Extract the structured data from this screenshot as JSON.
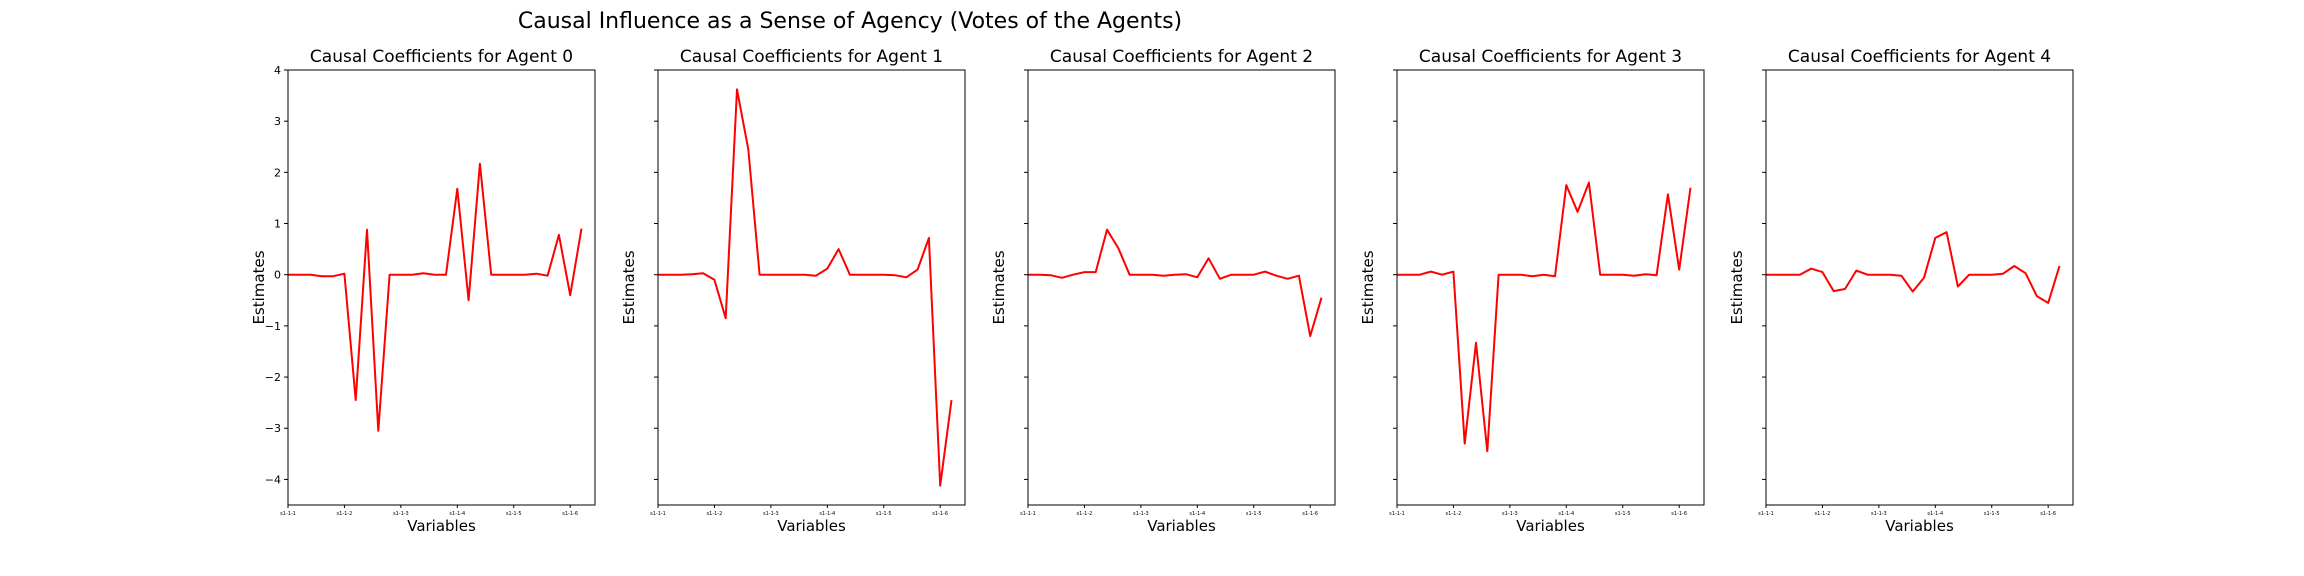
{
  "figure": {
    "title": "Causal Influence as a Sense of Agency (Votes of the Agents)"
  },
  "chart_data": [
    {
      "type": "line",
      "title": "Causal Coefficients for Agent 0",
      "xlabel": "Variables",
      "ylabel": "Estimates",
      "ylim": [
        -4.5,
        4.0
      ],
      "yticks": [
        4,
        3,
        2,
        1,
        0,
        -1,
        -2,
        -3,
        -4
      ],
      "ytick_labels": [
        "4",
        "3",
        "2",
        "1",
        "0",
        "−1",
        "−2",
        "−3",
        "−4"
      ],
      "xticks": [
        0,
        5,
        10,
        15,
        20,
        25
      ],
      "xtick_labels": [
        "s1-1-1",
        "s1-1-2",
        "s1-1-3",
        "s1-1-4",
        "s1-1-5",
        "s1-1-6"
      ],
      "xlim": [
        0,
        27.2
      ],
      "color": "#ff0000",
      "x": [
        0,
        1,
        2,
        3,
        4,
        5,
        6,
        7,
        8,
        9,
        10,
        11,
        12,
        13,
        14,
        15,
        16,
        17,
        18,
        19,
        20,
        21,
        22,
        23,
        24,
        25,
        26
      ],
      "values": [
        0.0,
        0.0,
        0.0,
        -0.03,
        -0.03,
        0.02,
        -2.45,
        0.88,
        -3.05,
        0.0,
        0.0,
        0.0,
        0.03,
        0.0,
        0.0,
        1.68,
        -0.5,
        2.17,
        0.0,
        0.0,
        0.0,
        0.0,
        0.02,
        -0.02,
        0.78,
        -0.4,
        0.9
      ]
    },
    {
      "type": "line",
      "title": "Causal Coefficients for Agent 1",
      "xlabel": "Variables",
      "ylabel": "Estimates",
      "ylim": [
        -4.5,
        4.0
      ],
      "xticks": [
        0,
        5,
        10,
        15,
        20,
        25
      ],
      "xtick_labels": [
        "s1-1-1",
        "s1-1-2",
        "s1-1-3",
        "s1-1-4",
        "s1-1-5",
        "s1-1-6"
      ],
      "xlim": [
        0,
        27.2
      ],
      "color": "#ff0000",
      "x": [
        0,
        1,
        2,
        3,
        4,
        5,
        6,
        7,
        8,
        9,
        10,
        11,
        12,
        13,
        14,
        15,
        16,
        17,
        18,
        19,
        20,
        21,
        22,
        23,
        24,
        25,
        26
      ],
      "values": [
        0.0,
        0.0,
        0.0,
        0.01,
        0.03,
        -0.1,
        -0.85,
        3.62,
        2.45,
        0.0,
        0.0,
        0.0,
        0.0,
        0.0,
        -0.02,
        0.12,
        0.5,
        0.0,
        0.0,
        0.0,
        0.0,
        -0.01,
        -0.05,
        0.1,
        0.72,
        -4.12,
        -2.45
      ]
    },
    {
      "type": "line",
      "title": "Causal Coefficients for Agent 2",
      "xlabel": "Variables",
      "ylabel": "Estimates",
      "ylim": [
        -4.5,
        4.0
      ],
      "xticks": [
        0,
        5,
        10,
        15,
        20,
        25
      ],
      "xtick_labels": [
        "s1-1-1",
        "s1-1-2",
        "s1-1-3",
        "s1-1-4",
        "s1-1-5",
        "s1-1-6"
      ],
      "xlim": [
        0,
        27.2
      ],
      "color": "#ff0000",
      "x": [
        0,
        1,
        2,
        3,
        4,
        5,
        6,
        7,
        8,
        9,
        10,
        11,
        12,
        13,
        14,
        15,
        16,
        17,
        18,
        19,
        20,
        21,
        22,
        23,
        24,
        25,
        26
      ],
      "values": [
        0.0,
        0.0,
        -0.01,
        -0.06,
        0.0,
        0.05,
        0.05,
        0.88,
        0.52,
        0.0,
        0.0,
        0.0,
        -0.02,
        0.0,
        0.01,
        -0.05,
        0.32,
        -0.08,
        0.0,
        0.0,
        0.0,
        0.06,
        -0.02,
        -0.08,
        -0.02,
        -1.2,
        -0.45
      ]
    },
    {
      "type": "line",
      "title": "Causal Coefficients for Agent 3",
      "xlabel": "Variables",
      "ylabel": "Estimates",
      "ylim": [
        -4.5,
        4.0
      ],
      "xticks": [
        0,
        5,
        10,
        15,
        20,
        25
      ],
      "xtick_labels": [
        "s1-1-1",
        "s1-1-2",
        "s1-1-3",
        "s1-1-4",
        "s1-1-5",
        "s1-1-6"
      ],
      "xlim": [
        0,
        27.2
      ],
      "color": "#ff0000",
      "x": [
        0,
        1,
        2,
        3,
        4,
        5,
        6,
        7,
        8,
        9,
        10,
        11,
        12,
        13,
        14,
        15,
        16,
        17,
        18,
        19,
        20,
        21,
        22,
        23,
        24,
        25,
        26
      ],
      "values": [
        0.0,
        0.0,
        0.0,
        0.06,
        0.0,
        0.06,
        -3.3,
        -1.33,
        -3.45,
        0.0,
        0.0,
        0.0,
        -0.03,
        0.0,
        -0.03,
        1.75,
        1.23,
        1.8,
        0.0,
        0.0,
        0.0,
        -0.02,
        0.01,
        -0.01,
        1.57,
        0.1,
        1.7
      ]
    },
    {
      "type": "line",
      "title": "Causal Coefficients for Agent 4",
      "xlabel": "Variables",
      "ylabel": "Estimates",
      "ylim": [
        -4.5,
        4.0
      ],
      "xticks": [
        0,
        5,
        10,
        15,
        20,
        25
      ],
      "xtick_labels": [
        "s1-1-1",
        "s1-1-2",
        "s1-1-3",
        "s1-1-4",
        "s1-1-5",
        "s1-1-6"
      ],
      "xlim": [
        0,
        27.2
      ],
      "color": "#ff0000",
      "x": [
        0,
        1,
        2,
        3,
        4,
        5,
        6,
        7,
        8,
        9,
        10,
        11,
        12,
        13,
        14,
        15,
        16,
        17,
        18,
        19,
        20,
        21,
        22,
        23,
        24,
        25,
        26
      ],
      "values": [
        0.0,
        0.0,
        0.0,
        0.0,
        0.12,
        0.05,
        -0.32,
        -0.28,
        0.08,
        0.0,
        0.0,
        0.0,
        -0.02,
        -0.33,
        -0.06,
        0.72,
        0.83,
        -0.23,
        0.0,
        0.0,
        0.0,
        0.02,
        0.17,
        0.03,
        -0.42,
        -0.55,
        0.17
      ]
    }
  ]
}
